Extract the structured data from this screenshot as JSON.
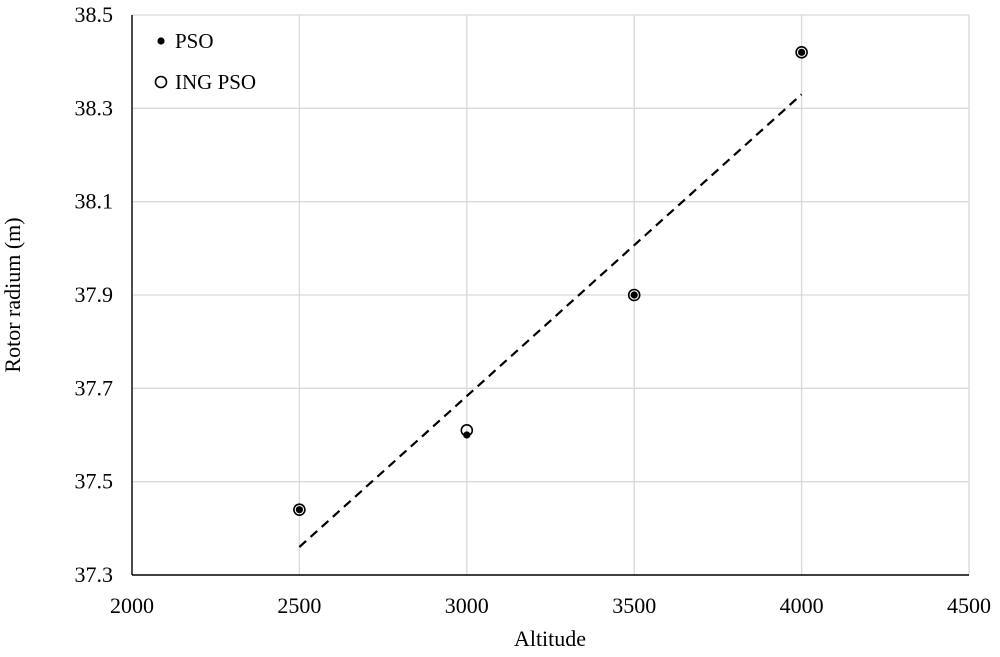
{
  "chart_data": {
    "type": "scatter",
    "title": "",
    "xlabel": "Altitude",
    "ylabel": "Rotor radium (m)",
    "xlim": [
      2000,
      4500
    ],
    "ylim": [
      37.3,
      38.5
    ],
    "x_ticks": [
      2000,
      2500,
      3000,
      3500,
      4000,
      4500
    ],
    "y_ticks": [
      37.3,
      37.5,
      37.7,
      37.9,
      38.1,
      38.3,
      38.5
    ],
    "x_tick_labels": [
      "2000",
      "2500",
      "3000",
      "3500",
      "4000",
      "4500"
    ],
    "y_tick_labels": [
      "37.3",
      "37.5",
      "37.7",
      "37.9",
      "38.1",
      "38.3",
      "38.5"
    ],
    "grid": true,
    "legend_position": "top-left",
    "series": [
      {
        "name": "PSO",
        "marker": "filled-dot",
        "x": [
          2500,
          3000,
          3500,
          4000
        ],
        "y": [
          37.44,
          37.6,
          37.9,
          38.42
        ]
      },
      {
        "name": "ING PSO",
        "marker": "open-circle",
        "x": [
          2500,
          3000,
          3500,
          4000
        ],
        "y": [
          37.44,
          37.61,
          37.9,
          38.42
        ]
      }
    ],
    "trendline": {
      "style": "dashed",
      "x": [
        2500,
        4000
      ],
      "y": [
        37.36,
        38.33
      ]
    },
    "colors": {
      "grid": "#d9d9d9",
      "axis": "#000000",
      "marker": "#000000"
    }
  }
}
